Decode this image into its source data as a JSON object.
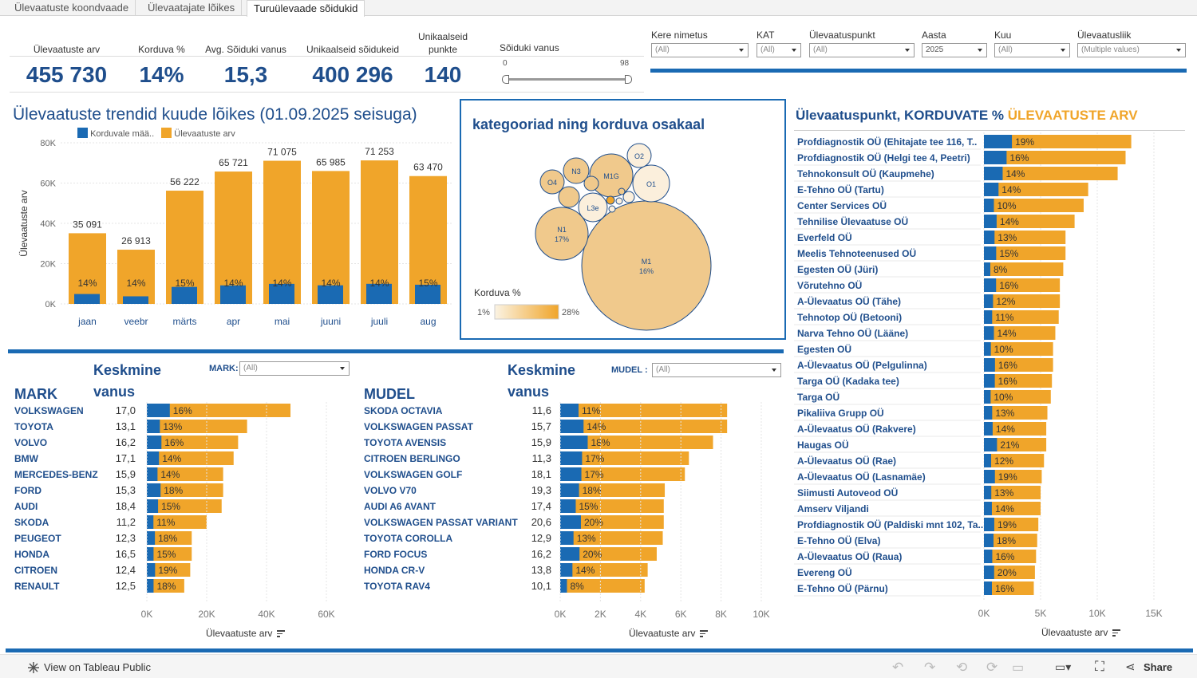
{
  "tabs": [
    {
      "label": "Ülevaatuste koondvaade"
    },
    {
      "label": "Ülevaatajate lõikes"
    },
    {
      "label": "Turuülevaade sõidukid"
    }
  ],
  "kpis": [
    {
      "label": "Ülevaatuste arv",
      "value": "455 730"
    },
    {
      "label": "Korduva %",
      "value": "14%"
    },
    {
      "label": "Avg. Sõiduki vanus",
      "value": "15,3"
    },
    {
      "label": "Unikaalseid sõidukeid",
      "value": "400 296"
    },
    {
      "label": "Unikaalseid punkte",
      "value": "140"
    }
  ],
  "slider": {
    "label": "Sõiduki vanus",
    "min": "0",
    "max": "98"
  },
  "filters": [
    {
      "label": "Kere nimetus",
      "value": "(All)"
    },
    {
      "label": "KAT",
      "value": "(All)"
    },
    {
      "label": "Ülevaatuspunkt",
      "value": "(All)"
    },
    {
      "label": "Aasta",
      "value": "2025"
    },
    {
      "label": "Kuu",
      "value": "(All)"
    },
    {
      "label": "Ülevaatusliik",
      "value": "(Multiple values)"
    }
  ],
  "colors": {
    "blue": "#1a6ab3",
    "orange": "#f0a52a",
    "title": "#1f4e8c"
  },
  "trend": {
    "title": "Ülevaatuste trendid kuude lõikes (01.09.2025 seisuga)",
    "legend": [
      "Korduvale mää..",
      "Ülevaatuste arv"
    ],
    "ylabel": "Ülevaatuste arv",
    "yticks": [
      "80K",
      "60K",
      "40K",
      "20K",
      "0K"
    ],
    "chart_data": {
      "type": "bar",
      "categories": [
        "jaan",
        "veebr",
        "märts",
        "apr",
        "mai",
        "juuni",
        "juuli",
        "aug"
      ],
      "series": [
        {
          "name": "Ülevaatuste arv",
          "values": [
            35091,
            26913,
            56222,
            65721,
            71075,
            65985,
            71253,
            63470
          ]
        },
        {
          "name": "Korduvale mää..",
          "values": [
            4913,
            3768,
            8433,
            9201,
            9950,
            9238,
            9975,
            9521
          ]
        }
      ],
      "total_labels": [
        "35 091",
        "26 913",
        "56 222",
        "65 721",
        "71 075",
        "65 985",
        "71 253",
        "63 470"
      ],
      "pct_labels": [
        "14%",
        "14%",
        "15%",
        "14%",
        "14%",
        "14%",
        "14%",
        "15%"
      ],
      "ylim": [
        0,
        80000
      ]
    }
  },
  "bubbles": {
    "title": "kategooriad ning korduva osakaal",
    "legend_title": "Korduva %",
    "legend_min": "1%",
    "legend_max": "28%",
    "items": [
      {
        "label": "M1",
        "pct": "16%"
      },
      {
        "label": "N1",
        "pct": "17%"
      },
      {
        "label": "M1G",
        "pct": ""
      },
      {
        "label": "O1",
        "pct": ""
      },
      {
        "label": "N3",
        "pct": ""
      },
      {
        "label": "O4",
        "pct": ""
      },
      {
        "label": "O2",
        "pct": ""
      },
      {
        "label": "L3e",
        "pct": ""
      }
    ]
  },
  "mark": {
    "heading": "MARK",
    "keskmine1": "Keskmine",
    "keskmine2": "vanus",
    "filter_label": "MARK:",
    "filter_value": "(All)",
    "xlabel": "Ülevaatuste arv",
    "xticks": [
      "0K",
      "20K",
      "40K",
      "60K"
    ],
    "chart_data": {
      "type": "bar",
      "categories": [
        "VOLKSWAGEN",
        "TOYOTA",
        "VOLVO",
        "BMW",
        "MERCEDES-BENZ",
        "FORD",
        "AUDI",
        "SKODA",
        "PEUGEOT",
        "HONDA",
        "CITROEN",
        "RENAULT"
      ],
      "age": [
        "17,0",
        "13,1",
        "16,2",
        "17,1",
        "15,9",
        "15,3",
        "18,4",
        "11,2",
        "12,3",
        "16,5",
        "12,4",
        "12,5"
      ],
      "values": [
        48000,
        33500,
        30500,
        29000,
        25500,
        25500,
        25000,
        20000,
        15000,
        15000,
        14500,
        12500
      ],
      "pct": [
        "16%",
        "13%",
        "16%",
        "14%",
        "14%",
        "18%",
        "15%",
        "11%",
        "18%",
        "15%",
        "19%",
        "18%"
      ],
      "xlim": [
        0,
        60000
      ]
    }
  },
  "mudel": {
    "heading": "MUDEL",
    "keskmine1": "Keskmine",
    "keskmine2": "vanus",
    "filter_label": "MUDEL :",
    "filter_value": "(All)",
    "xlabel": "Ülevaatuste arv",
    "xticks": [
      "0K",
      "2K",
      "4K",
      "6K",
      "8K",
      "10K"
    ],
    "chart_data": {
      "type": "bar",
      "categories": [
        "SKODA OCTAVIA",
        "VOLKSWAGEN PASSAT",
        "TOYOTA AVENSIS",
        "CITROEN BERLINGO",
        "VOLKSWAGEN GOLF",
        "VOLVO V70",
        "AUDI A6 AVANT",
        "VOLKSWAGEN PASSAT VARIANT",
        "TOYOTA COROLLA",
        "FORD FOCUS",
        "HONDA CR-V",
        "TOYOTA RAV4"
      ],
      "age": [
        "11,6",
        "15,7",
        "15,9",
        "11,3",
        "18,1",
        "19,3",
        "17,4",
        "20,6",
        "12,9",
        "16,2",
        "13,8",
        "10,1"
      ],
      "values": [
        8300,
        8300,
        7600,
        6400,
        6200,
        5200,
        5150,
        5150,
        5100,
        4800,
        4350,
        4200
      ],
      "pct": [
        "11%",
        "14%",
        "18%",
        "17%",
        "17%",
        "18%",
        "15%",
        "20%",
        "13%",
        "20%",
        "14%",
        "8%"
      ],
      "xlim": [
        0,
        10000
      ]
    }
  },
  "punkt": {
    "title_a": "Ülevaatuspunkt, KORDUVATE %",
    "title_b": "ÜLEVAATUSTE ARV",
    "xlabel": "Ülevaatuste arv",
    "xticks": [
      "0K",
      "5K",
      "10K",
      "15K"
    ],
    "chart_data": {
      "type": "bar",
      "categories": [
        "Profdiagnostik OÜ (Ehitajate tee 116, T..",
        "Profdiagnostik OÜ (Helgi tee 4, Peetri)",
        "Tehnokonsult OÜ (Kaupmehe)",
        "E-Tehno OÜ (Tartu)",
        "Center Services OÜ",
        "Tehnilise Ülevaatuse OÜ",
        "Everfeld OÜ",
        "Meelis Tehnoteenused OÜ",
        "Egesten OÜ (Jüri)",
        "Võrutehno OÜ",
        "A-Ülevaatus OÜ (Tähe)",
        "Tehnotop OÜ (Betooni)",
        "Narva Tehno OÜ (Lääne)",
        "Egesten OÜ",
        "A-Ülevaatus OÜ (Pelgulinna)",
        "Targa OÜ (Kadaka tee)",
        "Targa OÜ",
        "Pikaliiva Grupp OÜ",
        "A-Ülevaatus OÜ (Rakvere)",
        "Haugas OÜ",
        "A-Ülevaatus OÜ (Rae)",
        "A-Ülevaatus OÜ (Lasnamäe)",
        "Siimusti Autoveod OÜ",
        "Amserv Viljandi",
        "Profdiagnostik OÜ (Paldiski mnt 102, Ta..",
        "E-Tehno OÜ (Elva)",
        "A-Ülevaatus OÜ (Raua)",
        "Evereng OÜ",
        "E-Tehno OÜ (Pärnu)"
      ],
      "values": [
        13000,
        12500,
        11800,
        9200,
        8800,
        8000,
        7200,
        7200,
        7000,
        6700,
        6700,
        6600,
        6300,
        6100,
        6100,
        6000,
        5900,
        5600,
        5500,
        5500,
        5300,
        5100,
        5000,
        5000,
        4800,
        4700,
        4600,
        4500,
        4400
      ],
      "pct": [
        "19%",
        "16%",
        "14%",
        "14%",
        "10%",
        "14%",
        "13%",
        "15%",
        "8%",
        "16%",
        "12%",
        "11%",
        "14%",
        "10%",
        "16%",
        "16%",
        "10%",
        "13%",
        "14%",
        "21%",
        "12%",
        "19%",
        "13%",
        "14%",
        "19%",
        "18%",
        "16%",
        "20%",
        "16%"
      ],
      "xlim": [
        0,
        15000
      ]
    }
  },
  "footer": {
    "view": "View on Tableau Public",
    "share": "Share"
  }
}
